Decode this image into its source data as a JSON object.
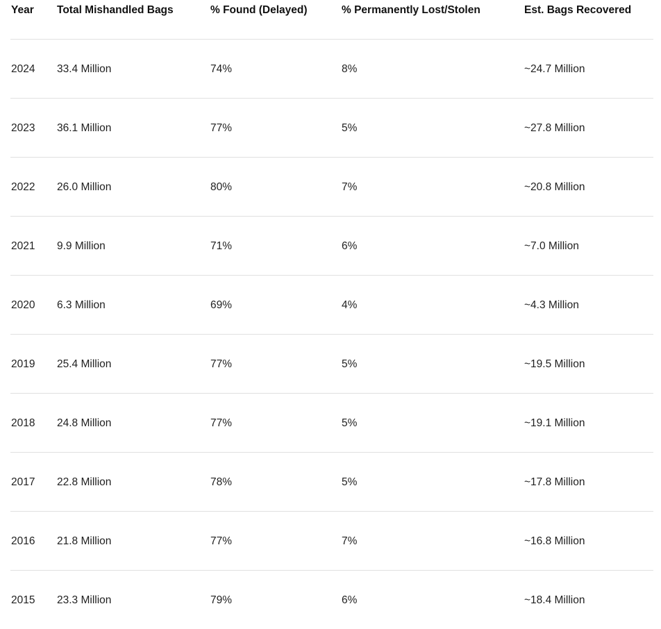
{
  "page": {
    "background": "#ffffff"
  },
  "colors": {
    "header_text": "#111111",
    "body_text": "#1f1f1f",
    "divider": "#e0e0e0"
  },
  "chart_data": {
    "type": "table",
    "columns": [
      "Year",
      "Total Mishandled Bags",
      "% Found (Delayed)",
      "% Permanently Lost/Stolen",
      "Est. Bags Recovered"
    ],
    "rows": [
      [
        "2024",
        "33.4 Million",
        "74%",
        "8%",
        "~24.7 Million"
      ],
      [
        "2023",
        "36.1 Million",
        "77%",
        "5%",
        "~27.8 Million"
      ],
      [
        "2022",
        "26.0 Million",
        "80%",
        "7%",
        "~20.8 Million"
      ],
      [
        "2021",
        "9.9 Million",
        "71%",
        "6%",
        "~7.0 Million"
      ],
      [
        "2020",
        "6.3 Million",
        "69%",
        "4%",
        "~4.3 Million"
      ],
      [
        "2019",
        "25.4 Million",
        "77%",
        "5%",
        "~19.5 Million"
      ],
      [
        "2018",
        "24.8 Million",
        "77%",
        "5%",
        "~19.1 Million"
      ],
      [
        "2017",
        "22.8 Million",
        "78%",
        "5%",
        "~17.8 Million"
      ],
      [
        "2016",
        "21.8 Million",
        "77%",
        "7%",
        "~16.8 Million"
      ],
      [
        "2015",
        "23.3 Million",
        "79%",
        "6%",
        "~18.4 Million"
      ]
    ]
  }
}
